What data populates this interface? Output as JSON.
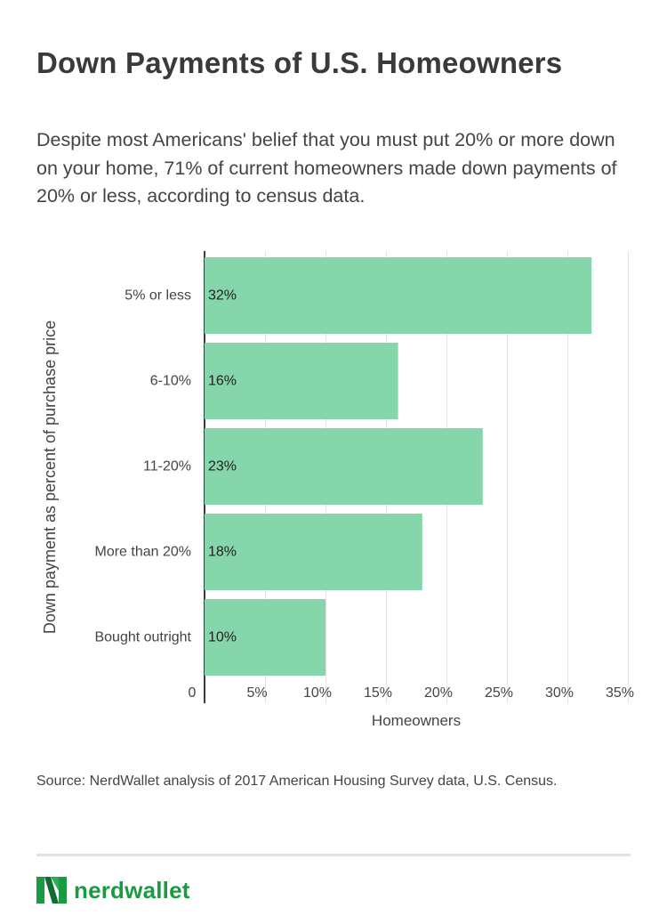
{
  "title": "Down Payments of U.S. Homeowners",
  "subtitle": "Despite most Americans' belief that you must put 20% or more down on your home, 71% of current homeowners made down payments of 20% or less, according to census data.",
  "source": "Source: NerdWallet analysis of 2017 American Housing Survey data, U.S. Census.",
  "brand": {
    "name": "nerdwallet",
    "color": "#1a9b43"
  },
  "chart_data": {
    "type": "bar",
    "orientation": "horizontal",
    "categories": [
      "5% or less",
      "6-10%",
      "11-20%",
      "More than 20%",
      "Bought outright"
    ],
    "values": [
      32,
      16,
      23,
      18,
      10
    ],
    "value_labels": [
      "32%",
      "16%",
      "23%",
      "18%",
      "10%"
    ],
    "xlabel": "Homeowners",
    "ylabel": "Down payment as percent of purchase price",
    "xlim": [
      0,
      35
    ],
    "x_ticks": [
      0,
      5,
      10,
      15,
      20,
      25,
      30,
      35
    ],
    "x_tick_labels": [
      "0",
      "5%",
      "10%",
      "15%",
      "20%",
      "25%",
      "30%",
      "35%"
    ],
    "grid": true,
    "bar_color": "#85d6aa"
  }
}
